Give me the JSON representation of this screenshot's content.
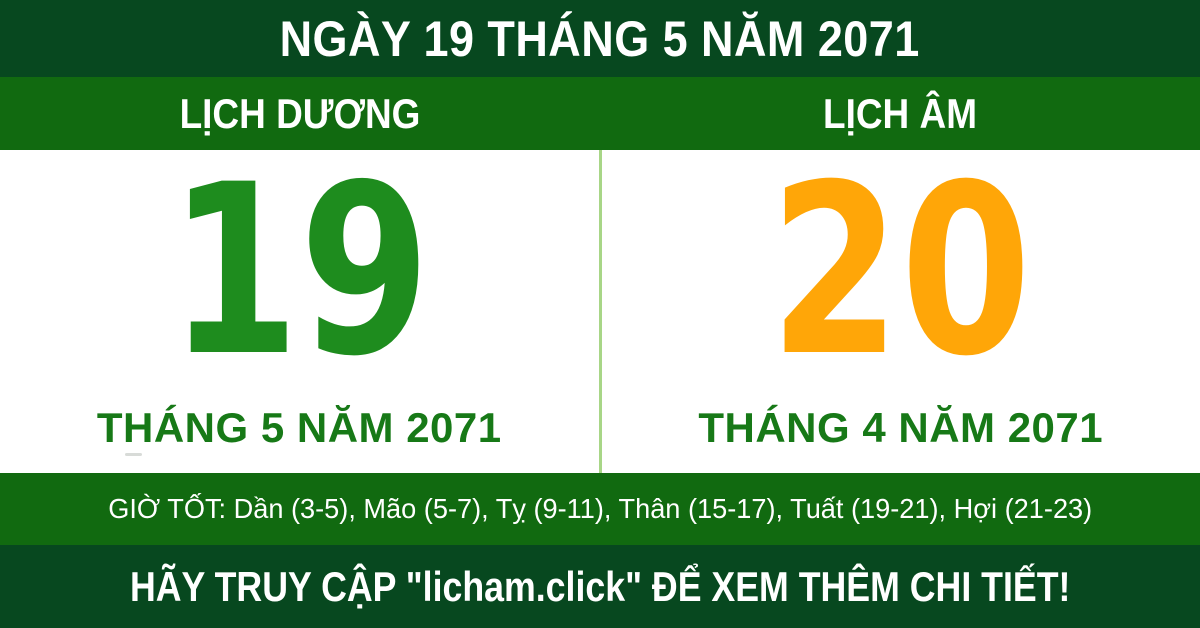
{
  "header": {
    "title": "NGÀY 19 THÁNG 5 NĂM 2071"
  },
  "calendars": {
    "solar": {
      "label": "LỊCH DƯƠNG",
      "day": "19",
      "month_year": "THÁNG 5 NĂM 2071"
    },
    "lunar": {
      "label": "LỊCH ÂM",
      "day": "20",
      "month_year": "THÁNG 4 NĂM 2071"
    }
  },
  "good_hours": {
    "label": "GIỜ TỐT",
    "hours": [
      "Dần (3-5)",
      "Mão (5-7)",
      "Tỵ (9-11)",
      "Thân (15-17)",
      "Tuất (19-21)",
      "Hợi (21-23)"
    ],
    "text": "GIỜ TỐT: Dần (3-5), Mão (5-7), Tỵ (9-11), Thân (15-17), Tuất (19-21), Hợi (21-23)"
  },
  "footer": {
    "text": "HÃY TRUY CẬP \"licham.click\" ĐỂ XEM THÊM CHI TIẾT!",
    "site_name": "licham.click"
  },
  "colors": {
    "dark_green_banner": "#07481f",
    "green_band": "#116a10",
    "solar_day_green": "#1e8c1e",
    "lunar_day_orange": "#ffa608",
    "month_label_green": "#177917",
    "panel_divider_light_green": "#a8d687",
    "text_white": "#ffffff"
  }
}
